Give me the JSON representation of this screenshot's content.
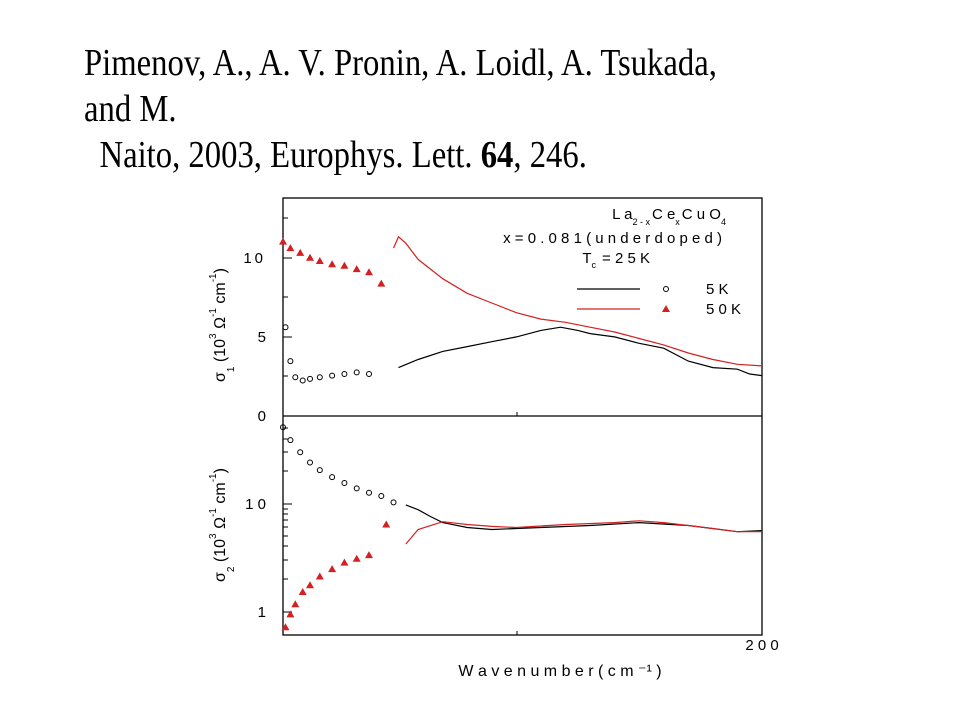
{
  "citation": {
    "line1": "Pimenov, A., A. V. Pronin, A. Loidl, A. Tsukada, and M.",
    "line2_prefix": "Naito, 2003, Europhys. Lett.",
    "volume": "64",
    "line2_suffix": ", 246."
  },
  "colors": {
    "series_5K": "#000000",
    "series_50K": "#d42020",
    "axes": "#000000"
  },
  "chart_data": [
    {
      "type": "line",
      "panel": "top",
      "ylabel": "σ1 (10^3 Ω^-1 cm^-1)",
      "yscale": "linear",
      "ylim": [
        0,
        13.5
      ],
      "xlim": [
        5,
        200
      ],
      "yticks": [
        "0",
        "5",
        "10"
      ],
      "annotation": {
        "compound_parts": [
          "L a",
          "2 - x",
          "C e",
          "x",
          "C u O",
          "4"
        ],
        "doping": "x  =  0 . 0 8 1  ( u n d e r d o p e d )",
        "tc_prefix": "T",
        "tc_sub": "c",
        "tc_suffix": "=  2 5  K"
      },
      "legend": [
        {
          "label": "5  K",
          "line_color": "#000000",
          "marker": "open-circle"
        },
        {
          "label": "5 0  K",
          "line_color": "#d42020",
          "marker": "filled-triangle"
        }
      ],
      "series": [
        {
          "name": "5  K",
          "color": "#000000",
          "markers": [
            [
              6,
              5.5
            ],
            [
              8,
              3.4
            ],
            [
              10,
              2.4
            ],
            [
              13,
              2.2
            ],
            [
              16,
              2.3
            ],
            [
              20,
              2.4
            ],
            [
              25,
              2.5
            ],
            [
              30,
              2.6
            ],
            [
              35,
              2.7
            ],
            [
              40,
              2.6
            ]
          ],
          "line": [
            [
              52,
              3.0
            ],
            [
              60,
              3.5
            ],
            [
              70,
              4.0
            ],
            [
              80,
              4.3
            ],
            [
              90,
              4.6
            ],
            [
              100,
              4.9
            ],
            [
              110,
              5.3
            ],
            [
              118,
              5.5
            ],
            [
              125,
              5.3
            ],
            [
              130,
              5.1
            ],
            [
              140,
              4.9
            ],
            [
              150,
              4.5
            ],
            [
              160,
              4.2
            ],
            [
              170,
              3.4
            ],
            [
              180,
              3.0
            ],
            [
              190,
              2.9
            ],
            [
              195,
              2.6
            ],
            [
              200,
              2.5
            ]
          ]
        },
        {
          "name": "5 0  K",
          "color": "#d42020",
          "markers": [
            [
              5,
              10.8
            ],
            [
              8,
              10.4
            ],
            [
              12,
              10.1
            ],
            [
              16,
              9.8
            ],
            [
              20,
              9.6
            ],
            [
              25,
              9.4
            ],
            [
              30,
              9.3
            ],
            [
              35,
              9.1
            ],
            [
              40,
              8.9
            ],
            [
              45,
              8.2
            ]
          ],
          "line": [
            [
              50,
              10.4
            ],
            [
              52,
              11.1
            ],
            [
              55,
              10.7
            ],
            [
              60,
              9.7
            ],
            [
              70,
              8.5
            ],
            [
              80,
              7.6
            ],
            [
              90,
              7.0
            ],
            [
              100,
              6.4
            ],
            [
              110,
              6.0
            ],
            [
              120,
              5.8
            ],
            [
              130,
              5.5
            ],
            [
              140,
              5.2
            ],
            [
              150,
              4.8
            ],
            [
              160,
              4.4
            ],
            [
              170,
              3.9
            ],
            [
              180,
              3.5
            ],
            [
              190,
              3.2
            ],
            [
              200,
              3.1
            ]
          ]
        }
      ]
    },
    {
      "type": "line",
      "panel": "bottom",
      "ylabel": "σ2 (10^3 Ω^-1 cm^-1)",
      "yscale": "log",
      "ylim": [
        0.6,
        45
      ],
      "xlim": [
        5,
        200
      ],
      "yticks": [
        "1",
        "1 0"
      ],
      "xticks": [
        "2 0 0"
      ],
      "xlabel": "W a v e n u m b e r  ( c m ⁻¹ )",
      "series": [
        {
          "name": "5  K",
          "color": "#000000",
          "markers": [
            [
              5,
              36
            ],
            [
              8,
              28
            ],
            [
              12,
              22
            ],
            [
              16,
              18
            ],
            [
              20,
              15.5
            ],
            [
              25,
              13.5
            ],
            [
              30,
              12.0
            ],
            [
              35,
              10.8
            ],
            [
              40,
              9.9
            ],
            [
              45,
              9.3
            ],
            [
              50,
              8.2
            ]
          ],
          "line": [
            [
              55,
              7.8
            ],
            [
              60,
              7.1
            ],
            [
              65,
              6.2
            ],
            [
              70,
              5.5
            ],
            [
              80,
              5.0
            ],
            [
              90,
              4.8
            ],
            [
              100,
              4.9
            ],
            [
              110,
              5.0
            ],
            [
              130,
              5.2
            ],
            [
              150,
              5.5
            ],
            [
              170,
              5.2
            ],
            [
              190,
              4.6
            ],
            [
              200,
              4.7
            ]
          ]
        },
        {
          "name": "5 0  K",
          "color": "#d42020",
          "markers": [
            [
              6,
              0.7
            ],
            [
              8,
              0.9
            ],
            [
              10,
              1.1
            ],
            [
              13,
              1.4
            ],
            [
              16,
              1.6
            ],
            [
              20,
              1.9
            ],
            [
              25,
              2.2
            ],
            [
              30,
              2.5
            ],
            [
              35,
              2.7
            ],
            [
              40,
              2.9
            ],
            [
              47,
              5.3
            ]
          ],
          "line": [
            [
              55,
              3.6
            ],
            [
              60,
              4.8
            ],
            [
              70,
              5.6
            ],
            [
              80,
              5.3
            ],
            [
              90,
              5.1
            ],
            [
              100,
              5.0
            ],
            [
              120,
              5.3
            ],
            [
              140,
              5.5
            ],
            [
              150,
              5.7
            ],
            [
              160,
              5.5
            ],
            [
              170,
              5.2
            ],
            [
              180,
              4.9
            ],
            [
              190,
              4.6
            ],
            [
              200,
              4.6
            ]
          ]
        }
      ]
    }
  ]
}
